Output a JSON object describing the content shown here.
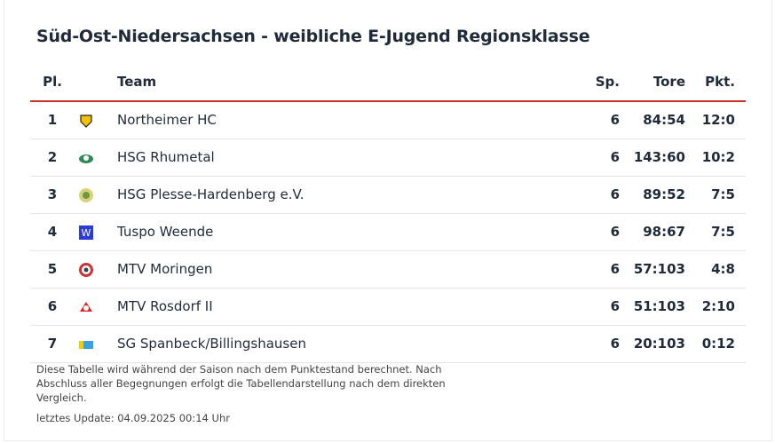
{
  "title": "Süd-Ost-Niedersachsen - weibliche E-Jugend Regionsklasse",
  "table": {
    "header": [
      "Pl.",
      "Team",
      "Sp.",
      "Tore",
      "Pkt."
    ],
    "rows": [
      [
        1,
        "Northeimer HC",
        6,
        "84:54",
        "12:0"
      ],
      [
        2,
        "HSG Rhumetal",
        6,
        "143:60",
        "10:2"
      ],
      [
        3,
        "HSG Plesse-Hardenberg e.V.",
        6,
        "89:52",
        "7:5"
      ],
      [
        4,
        "Tuspo Weende",
        6,
        "98:67",
        "7:5"
      ],
      [
        5,
        "MTV Moringen",
        6,
        "57:103",
        "4:8"
      ],
      [
        6,
        "MTV Rosdorf II",
        6,
        "51:103",
        "2:10"
      ],
      [
        7,
        "SG Spanbeck/Billingshausen",
        6,
        "20:103",
        "0:12"
      ]
    ]
  },
  "footnote": "Diese Tabelle wird während der Saison nach dem Punktestand berechnet. Nach Abschluss aller Begegnungen erfolgt die Tabellendarstellung nach dem direkten Vergleich.",
  "updated": "letztes Update: 04.09.2025 00:14 Uhr"
}
